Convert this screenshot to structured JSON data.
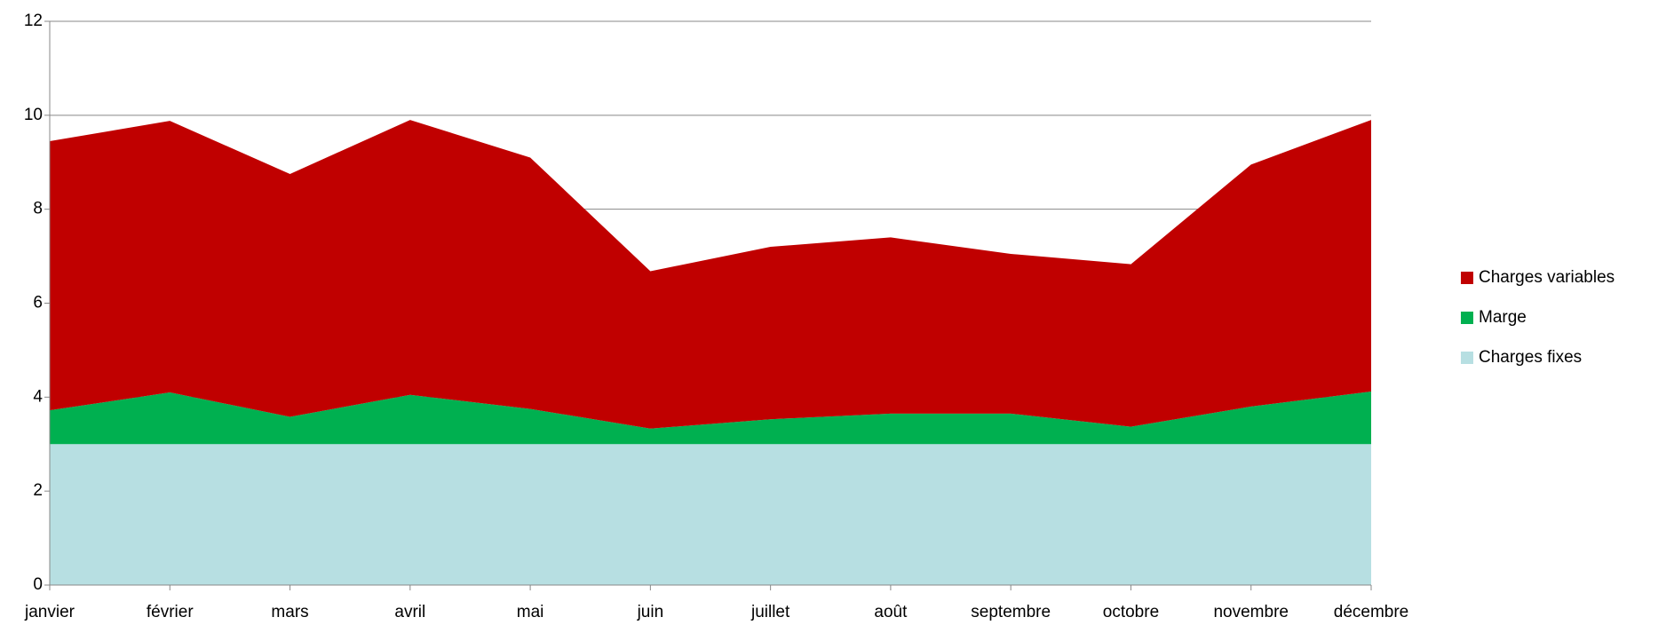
{
  "chart_data": {
    "type": "stacked_area",
    "categories": [
      "janvier",
      "février",
      "mars",
      "avril",
      "mai",
      "juin",
      "juillet",
      "août",
      "septembre",
      "octobre",
      "novembre",
      "décembre"
    ],
    "series": [
      {
        "name": "Charges fixes",
        "color": "#b7dfe2",
        "values": [
          3,
          3,
          3,
          3,
          3,
          3,
          3,
          3,
          3,
          3,
          3,
          3
        ]
      },
      {
        "name": "Marge",
        "color": "#00b050",
        "values": [
          0.72,
          1.1,
          0.58,
          1.05,
          0.75,
          0.33,
          0.53,
          0.65,
          0.65,
          0.37,
          0.8,
          1.12
        ]
      },
      {
        "name": "Charges variables",
        "color": "#c00000",
        "values": [
          5.73,
          5.78,
          5.17,
          5.85,
          5.35,
          3.35,
          3.67,
          3.75,
          3.4,
          3.46,
          5.15,
          5.78
        ]
      }
    ],
    "ylim": [
      0,
      12
    ],
    "yticks": [
      0,
      2,
      4,
      6,
      8,
      10,
      12
    ],
    "grid": true,
    "legend": "right"
  }
}
